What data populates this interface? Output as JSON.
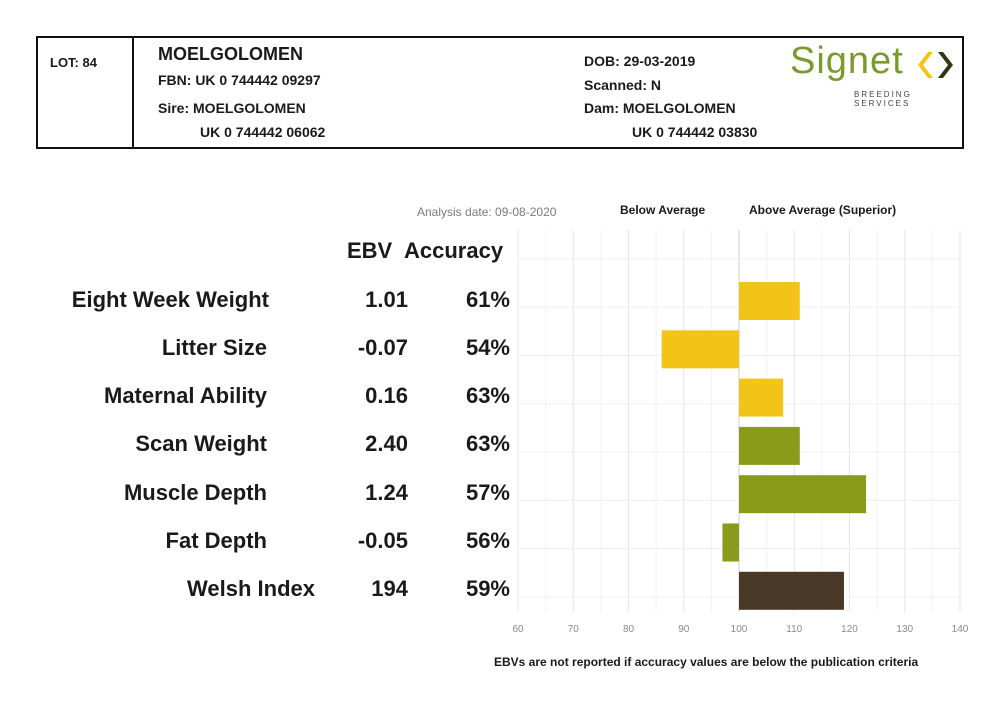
{
  "header": {
    "lot": "LOT: 84",
    "name": "MOELGOLOMEN",
    "fbn": "FBN: UK 0 744442 09297",
    "sire_label": "Sire: MOELGOLOMEN",
    "sire_id": "UK 0 744442 06062",
    "dob": "DOB: 29-03-2019",
    "scanned": "Scanned: N",
    "dam_label": "Dam: MOELGOLOMEN",
    "dam_id": "UK 0 744442 03830",
    "logo_text": "Signet",
    "logo_sub": "BREEDING SERVICES"
  },
  "columns": {
    "ebv": "EBV",
    "accuracy": "Accuracy"
  },
  "analysis_date": "Analysis date: 09-08-2020",
  "below_label": "Below Average",
  "above_label": "Above Average (Superior)",
  "footnote": "EBVs are not reported if accuracy values are below the publication criteria",
  "colors": {
    "yellow": "#f2c418",
    "olive": "#8a9a1b",
    "brown": "#4a3826",
    "logo_green": "#7a9a2e"
  },
  "rows": [
    {
      "label": "Eight Week Weight",
      "ebv": "1.01",
      "accuracy": "61%"
    },
    {
      "label": "Litter Size",
      "ebv": "-0.07",
      "accuracy": "54%"
    },
    {
      "label": "Maternal Ability",
      "ebv": "0.16",
      "accuracy": "63%"
    },
    {
      "label": "Scan Weight",
      "ebv": "2.40",
      "accuracy": "63%"
    },
    {
      "label": "Muscle Depth",
      "ebv": "1.24",
      "accuracy": "57%"
    },
    {
      "label": "Fat Depth",
      "ebv": "-0.05",
      "accuracy": "56%"
    },
    {
      "label": "Welsh Index",
      "ebv": "194",
      "accuracy": "59%"
    }
  ],
  "chart_data": {
    "type": "bar",
    "orientation": "horizontal",
    "baseline": 100,
    "xlim": [
      60,
      140
    ],
    "xticks": [
      "60",
      "70",
      "80",
      "90",
      "100",
      "110",
      "120",
      "130",
      "140"
    ],
    "grid": true,
    "categories": [
      "Eight Week Weight",
      "Litter Size",
      "Maternal Ability",
      "Scan Weight",
      "Muscle Depth",
      "Fat Depth",
      "Welsh Index"
    ],
    "values": [
      111,
      86,
      108,
      111,
      123,
      97,
      119
    ],
    "bar_colors": [
      "#f2c418",
      "#f2c418",
      "#f2c418",
      "#8a9a1b",
      "#8a9a1b",
      "#8a9a1b",
      "#4a3826"
    ]
  }
}
